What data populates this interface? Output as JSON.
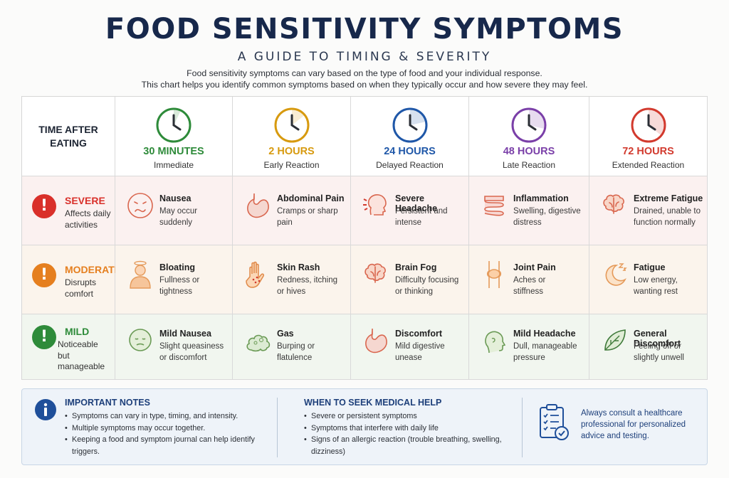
{
  "header": {
    "title": "FOOD SENSITIVITY SYMPTOMS",
    "subtitle": "A GUIDE TO TIMING & SEVERITY",
    "intro_line1": "Food sensitivity symptoms can vary based on the type of food and your individual response.",
    "intro_line2": "This chart helps you identify common symptoms based on when they typically occur and how severe they may feel."
  },
  "time_label_line1": "TIME AFTER",
  "time_label_line2": "EATING",
  "timings": [
    {
      "time": "30 MINUTES",
      "label": "Immediate",
      "color": "#2e8b3a",
      "icon": "clock-icon"
    },
    {
      "time": "2 HOURS",
      "label": "Early Reaction",
      "color": "#d79a0f",
      "icon": "clock-icon"
    },
    {
      "time": "24 HOURS",
      "label": "Delayed Reaction",
      "color": "#1f57a8",
      "icon": "clock-icon"
    },
    {
      "time": "48 HOURS",
      "label": "Late Reaction",
      "color": "#7a3fa8",
      "icon": "clock-icon"
    },
    {
      "time": "72 HOURS",
      "label": "Extended Reaction",
      "color": "#d23a2e",
      "icon": "clock-icon"
    }
  ],
  "severities": [
    {
      "name": "SEVERE",
      "desc_line1": "Affects daily",
      "desc_line2": "activities",
      "color": "#d9302a",
      "badge": "!"
    },
    {
      "name": "MODERATE",
      "desc_line1": "Disrupts",
      "desc_line2": "comfort",
      "color": "#e57f1f",
      "badge": "!"
    },
    {
      "name": "MILD",
      "desc_line1": "Noticeable",
      "desc_line2": "but manageable",
      "color": "#2e8b3a",
      "badge": "!"
    }
  ],
  "symptoms": [
    [
      {
        "name": "Nausea",
        "d1": "May occur",
        "d2": "suddenly",
        "icon": "nauseous-face-icon"
      },
      {
        "name": "Abdominal Pain",
        "d1": "Cramps or sharp",
        "d2": "pain",
        "icon": "stomach-icon"
      },
      {
        "name": "Severe Headache",
        "d1": "Persistent and",
        "d2": "intense",
        "icon": "headache-icon"
      },
      {
        "name": "Inflammation",
        "d1": "Swelling, digestive",
        "d2": "distress",
        "icon": "intestines-icon"
      },
      {
        "name": "Extreme Fatigue",
        "d1": "Drained, unable to",
        "d2": "function normally",
        "icon": "brain-icon"
      }
    ],
    [
      {
        "name": "Bloating",
        "d1": "Fullness or",
        "d2": "tightness",
        "icon": "bloated-person-icon"
      },
      {
        "name": "Skin Rash",
        "d1": "Redness, itching",
        "d2": "or hives",
        "icon": "rash-hand-icon"
      },
      {
        "name": "Brain Fog",
        "d1": "Difficulty focusing",
        "d2": "or thinking",
        "icon": "brain-icon"
      },
      {
        "name": "Joint Pain",
        "d1": "Aches or",
        "d2": "stiffness",
        "icon": "knee-joint-icon"
      },
      {
        "name": "Fatigue",
        "d1": "Low energy,",
        "d2": "wanting rest",
        "icon": "moon-sleep-icon"
      }
    ],
    [
      {
        "name": "Mild Nausea",
        "d1": "Slight queasiness",
        "d2": "or discomfort",
        "icon": "queasy-face-icon"
      },
      {
        "name": "Gas",
        "d1": "Burping or",
        "d2": "flatulence",
        "icon": "gas-cloud-icon"
      },
      {
        "name": "Discomfort",
        "d1": "Mild digestive",
        "d2": "unease",
        "icon": "stomach-icon"
      },
      {
        "name": "Mild Headache",
        "d1": "Dull, manageable",
        "d2": "pressure",
        "icon": "head-profile-icon"
      },
      {
        "name": "General Discomfort",
        "d1": "Feeling off or",
        "d2": "slightly unwell",
        "icon": "leaf-icon"
      }
    ]
  ],
  "notes": {
    "important_title": "IMPORTANT NOTES",
    "important": [
      "Symptoms can vary in type, timing, and intensity.",
      "Multiple symptoms may occur together.",
      "Keeping a food and symptom journal can help identify triggers."
    ],
    "help_title": "WHEN TO SEEK MEDICAL HELP",
    "help": [
      "Severe or persistent symptoms",
      "Symptoms that interfere with daily life",
      "Signs of an allergic reaction (trouble breathing, swelling, dizziness)"
    ],
    "consult": "Always consult a healthcare professional for personalized advice and testing.",
    "info_badge": "i"
  }
}
